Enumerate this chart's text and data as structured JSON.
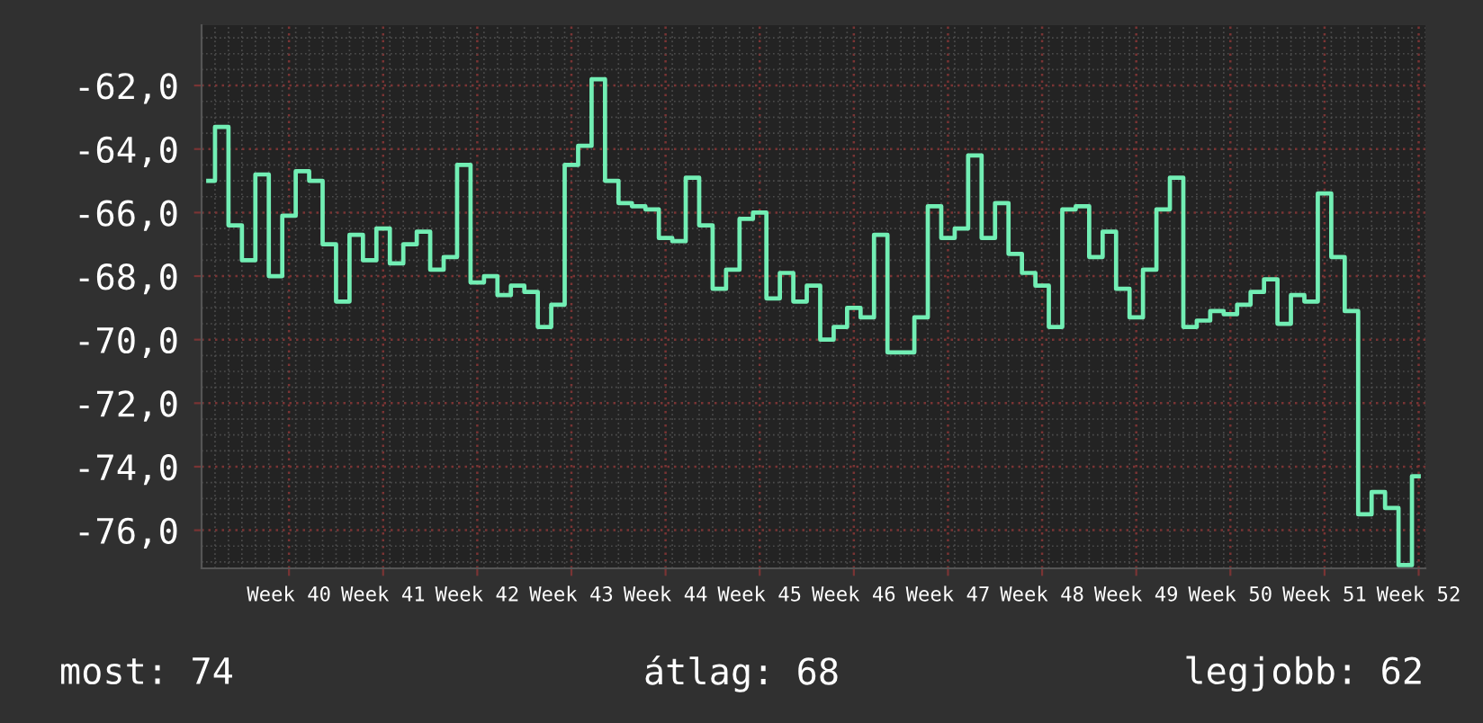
{
  "chart_data": {
    "type": "step",
    "categories": [
      null,
      null,
      null,
      null,
      null,
      null,
      "Week 40",
      null,
      null,
      null,
      null,
      null,
      null,
      "Week 41",
      null,
      null,
      null,
      null,
      null,
      null,
      "Week 42",
      null,
      null,
      null,
      null,
      null,
      null,
      "Week 43",
      null,
      null,
      null,
      null,
      null,
      null,
      "Week 44",
      null,
      null,
      null,
      null,
      null,
      null,
      "Week 45",
      null,
      null,
      null,
      null,
      null,
      null,
      "Week 46",
      null,
      null,
      null,
      null,
      null,
      null,
      "Week 47",
      null,
      null,
      null,
      null,
      null,
      null,
      "Week 48",
      null,
      null,
      null,
      null,
      null,
      null,
      "Week 49",
      null,
      null,
      null,
      null,
      null,
      null,
      "Week 50",
      null,
      null,
      null,
      null,
      null,
      null,
      "Week 51",
      null,
      null,
      null,
      null,
      null,
      null,
      "Week 52"
    ],
    "values": [
      -65.0,
      -63.3,
      -66.4,
      -67.5,
      -64.8,
      -68.0,
      -66.1,
      -64.7,
      -65.0,
      -67.0,
      -68.8,
      -66.7,
      -67.5,
      -66.5,
      -67.6,
      -67.0,
      -66.6,
      -67.8,
      -67.4,
      -64.5,
      -68.2,
      -68.0,
      -68.6,
      -68.3,
      -68.5,
      -69.6,
      -68.9,
      -64.5,
      -63.9,
      -61.8,
      -65.0,
      -65.7,
      -65.8,
      -65.9,
      -66.8,
      -66.9,
      -64.9,
      -66.4,
      -68.4,
      -67.8,
      -66.2,
      -66.0,
      -68.7,
      -67.9,
      -68.8,
      -68.3,
      -70.0,
      -69.6,
      -69.0,
      -69.3,
      -66.7,
      -70.4,
      -70.4,
      -69.3,
      -65.8,
      -66.8,
      -66.5,
      -64.2,
      -66.8,
      -65.7,
      -67.3,
      -67.9,
      -68.3,
      -69.6,
      -65.9,
      -65.8,
      -67.4,
      -66.6,
      -68.4,
      -69.3,
      -67.8,
      -65.9,
      -64.9,
      -69.6,
      -69.4,
      -69.1,
      -69.2,
      -68.9,
      -68.5,
      -68.1,
      -69.5,
      -68.6,
      -68.8,
      -65.4,
      -67.4,
      -69.1,
      -75.5,
      -74.8,
      -75.3,
      -77.1,
      -74.3
    ],
    "color": "#72eeb4",
    "ylim": [
      -77.2,
      -60.1
    ],
    "yticks": [
      {
        "value": -76,
        "label": "-76,0"
      },
      {
        "value": -74,
        "label": "-74,0"
      },
      {
        "value": -72,
        "label": "-72,0"
      },
      {
        "value": -70,
        "label": "-70,0"
      },
      {
        "value": -68,
        "label": "-68,0"
      },
      {
        "value": -66,
        "label": "-66,0"
      },
      {
        "value": -64,
        "label": "-64,0"
      },
      {
        "value": -62,
        "label": "-62,0"
      }
    ],
    "grid": true,
    "annotations": [
      "most: 74",
      "átlag: 68",
      "legjobb: 62"
    ]
  }
}
